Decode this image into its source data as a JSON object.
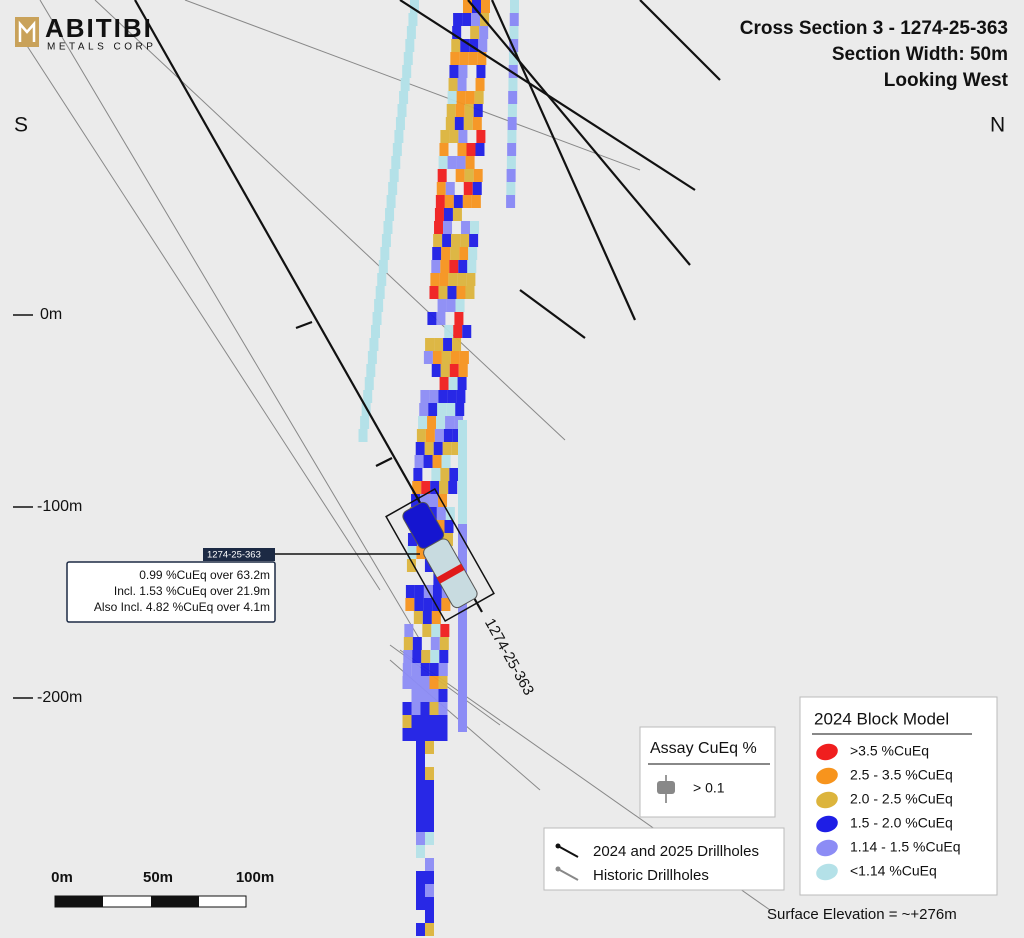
{
  "logo": {
    "name": "ABITIBI",
    "subtitle": "METALS CORP"
  },
  "header": {
    "title": "Cross Section 3 - 1274-25-363",
    "width": "Section Width: 50m",
    "view": "Looking West"
  },
  "compass": {
    "left": "S",
    "right": "N"
  },
  "elevations": [
    "0m",
    "-100m",
    "-200m"
  ],
  "callout": {
    "tag": "1274-25-363",
    "lines": [
      "0.99 %CuEq over 63.2m",
      "Incl. 1.53 %CuEq over 21.9m",
      "Also Incl. 4.82 %CuEq over 4.1m"
    ]
  },
  "drillhole_label": "1274-25-363",
  "assay_legend": {
    "title": "Assay CuEq %",
    "item": "> 0.1"
  },
  "block_model": {
    "title": "2024 Block Model",
    "items": [
      {
        "label": ">3.5 %CuEq",
        "color": "#f01e1e"
      },
      {
        "label": "2.5 - 3.5 %CuEq",
        "color": "#f7941d"
      },
      {
        "label": "2.0 - 2.5 %CuEq",
        "color": "#dcb43c"
      },
      {
        "label": "1.5 - 2.0 %CuEq",
        "color": "#1e1ee6"
      },
      {
        "label": "1.14 - 1.5 %CuEq",
        "color": "#8c8cf5"
      },
      {
        "label": "<1.14 %CuEq",
        "color": "#b4e1e8"
      }
    ]
  },
  "drillhole_legend": [
    "2024 and 2025 Drillholes",
    "Historic Drillholes"
  ],
  "scale": [
    "0m",
    "50m",
    "100m"
  ],
  "surface_note": "Surface Elevation = ~+276m"
}
